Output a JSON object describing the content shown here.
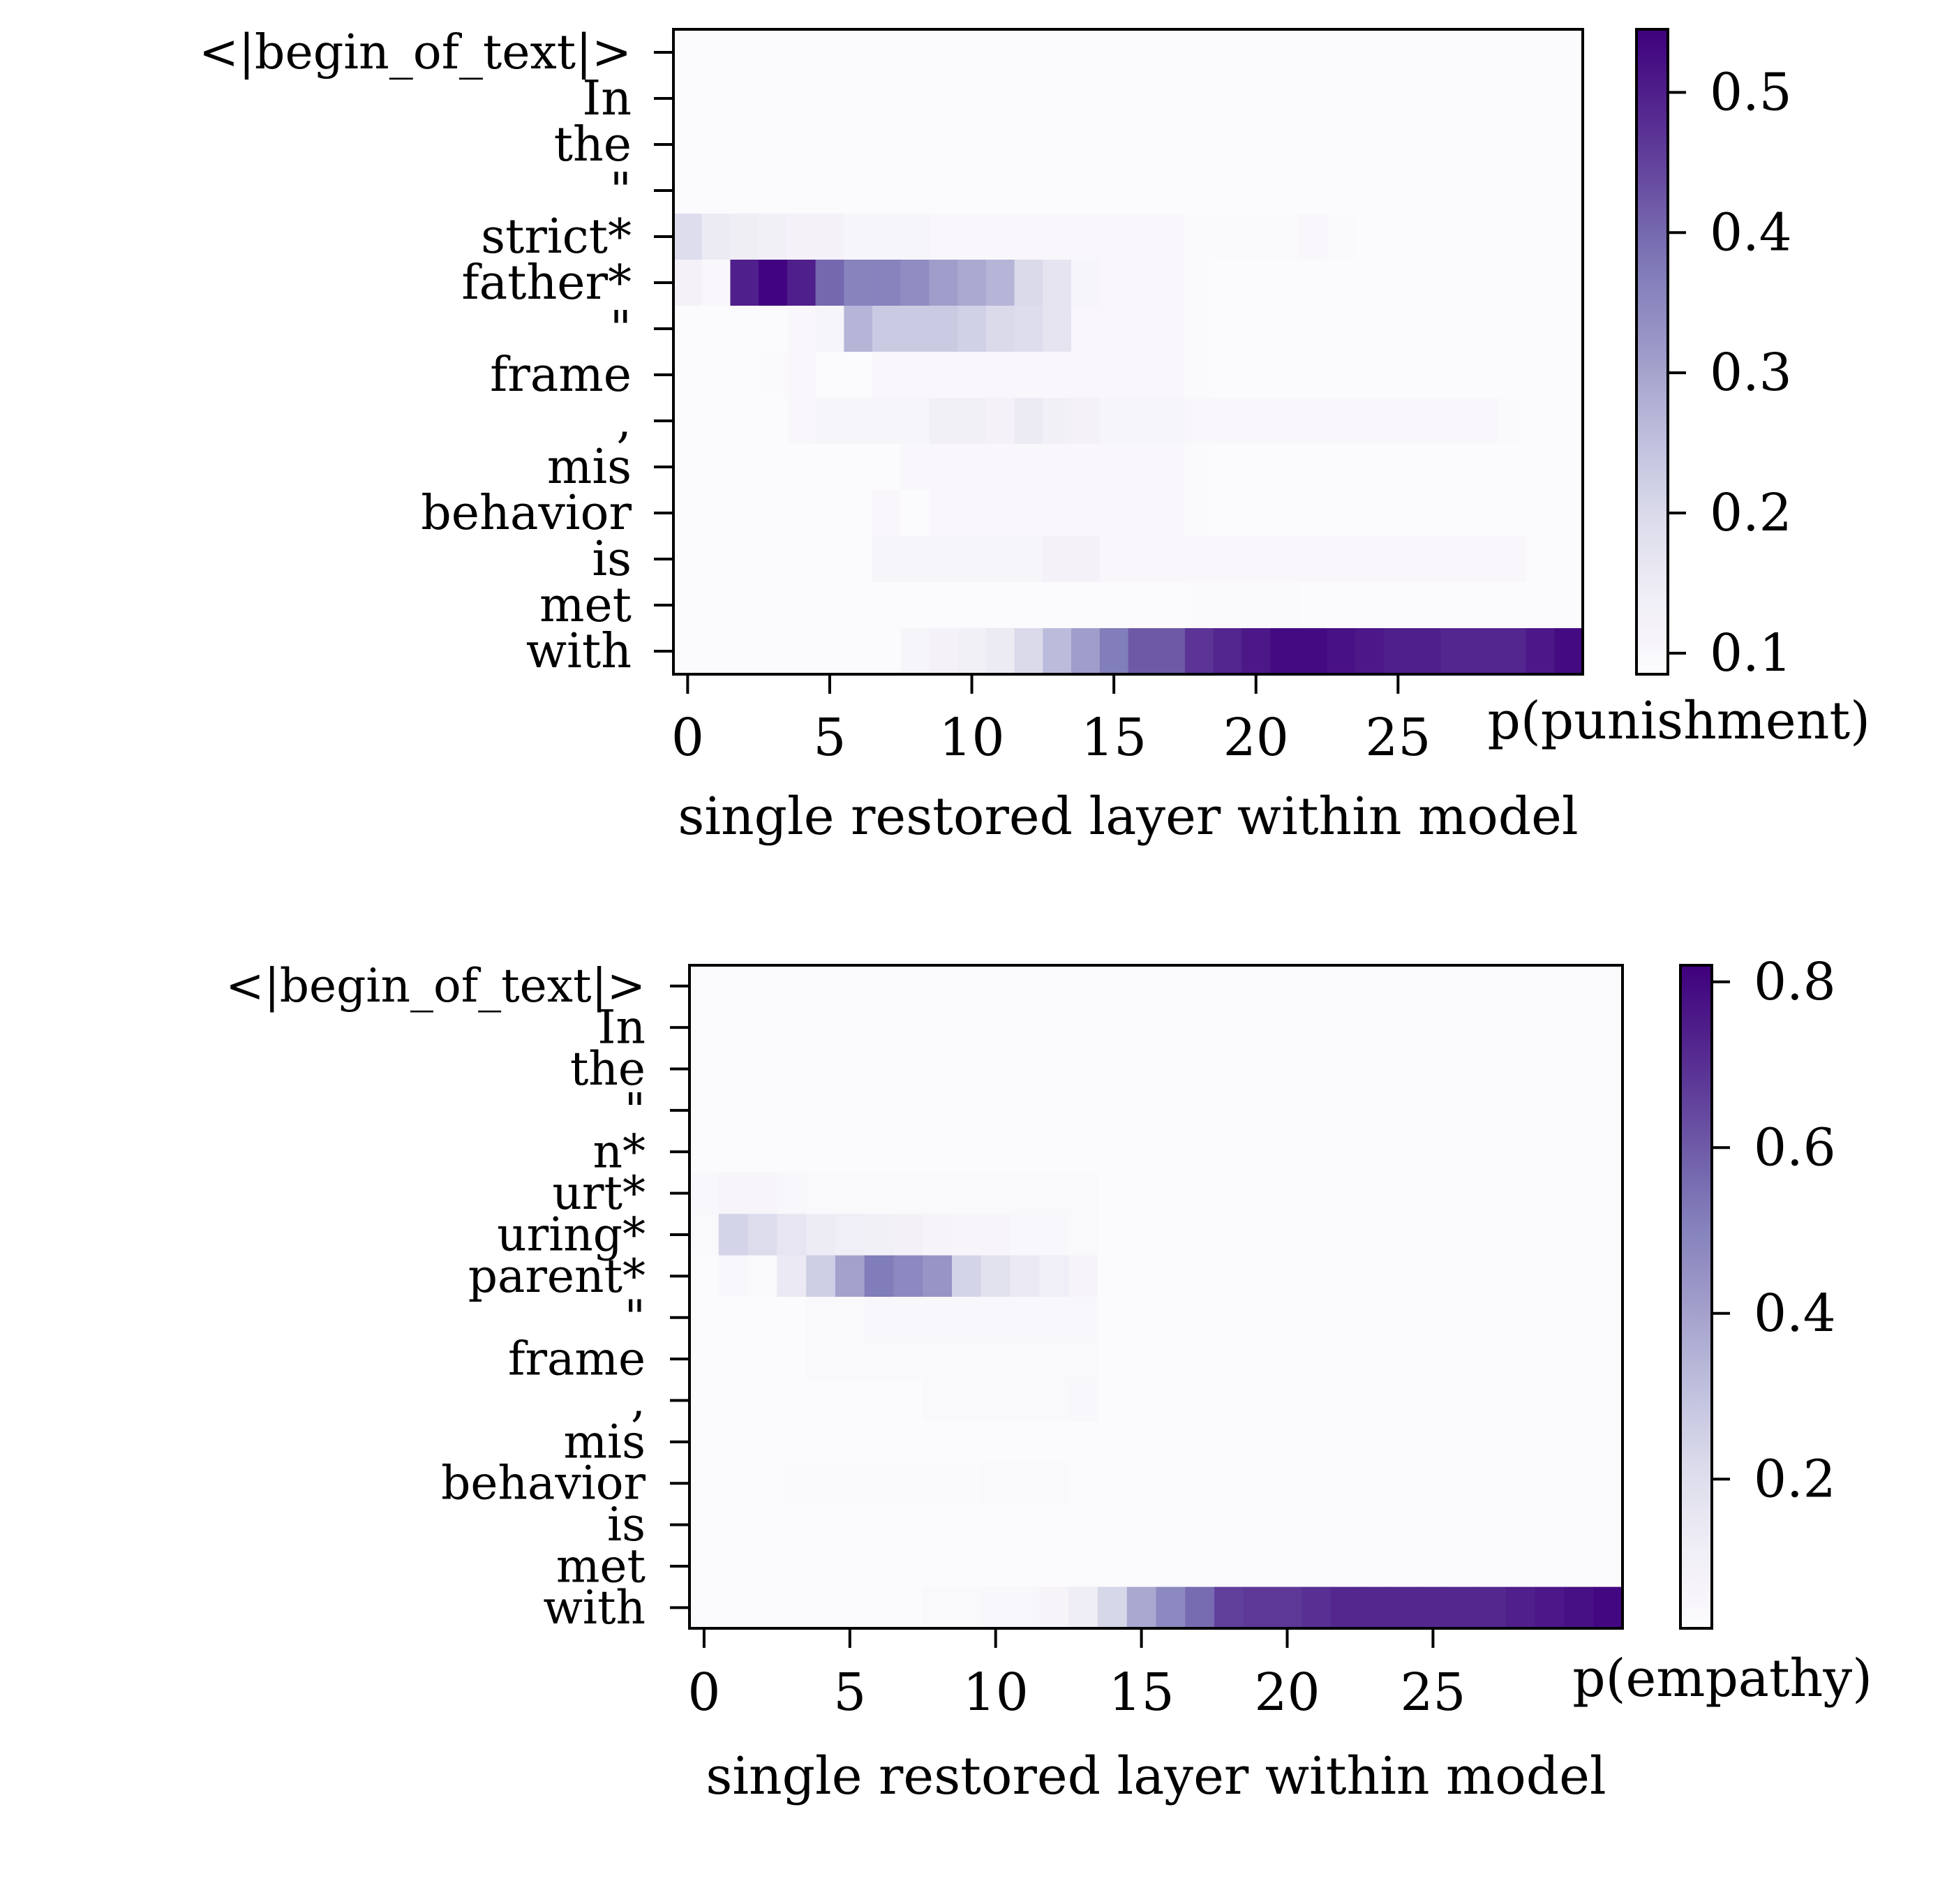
{
  "chart_data": [
    {
      "type": "heatmap",
      "title": "",
      "xlabel": "single restored layer within model",
      "ylabel": "",
      "x_ticks": [
        "0",
        "5",
        "10",
        "15",
        "20",
        "25"
      ],
      "tokens": [
        "<|begin_of_text|>",
        "In",
        "the",
        "\"",
        "strict*",
        "father*",
        "\"",
        "frame",
        ",",
        "mis",
        "behavior",
        "is",
        "met",
        "with"
      ],
      "layers": 32,
      "colorbar": {
        "label": "p(punishment)",
        "min": 0.085,
        "max": 0.545,
        "ticks": [
          "0.1",
          "0.2",
          "0.3",
          "0.4",
          "0.5"
        ],
        "tick_values": [
          0.1,
          0.2,
          0.3,
          0.4,
          0.5
        ]
      },
      "colormap": "Purples",
      "values": [
        [
          0.09,
          0.09,
          0.09,
          0.09,
          0.09,
          0.09,
          0.09,
          0.09,
          0.09,
          0.09,
          0.09,
          0.09,
          0.09,
          0.09,
          0.09,
          0.09,
          0.09,
          0.09,
          0.09,
          0.09,
          0.09,
          0.09,
          0.09,
          0.09,
          0.09,
          0.09,
          0.09,
          0.09,
          0.09,
          0.09,
          0.09,
          0.09
        ],
        [
          0.09,
          0.09,
          0.09,
          0.09,
          0.09,
          0.09,
          0.09,
          0.09,
          0.09,
          0.09,
          0.09,
          0.09,
          0.09,
          0.09,
          0.09,
          0.09,
          0.09,
          0.09,
          0.09,
          0.09,
          0.09,
          0.09,
          0.09,
          0.09,
          0.09,
          0.09,
          0.09,
          0.09,
          0.09,
          0.09,
          0.09,
          0.09
        ],
        [
          0.09,
          0.09,
          0.09,
          0.09,
          0.09,
          0.09,
          0.09,
          0.09,
          0.09,
          0.09,
          0.09,
          0.09,
          0.09,
          0.09,
          0.09,
          0.09,
          0.09,
          0.09,
          0.09,
          0.09,
          0.09,
          0.09,
          0.09,
          0.09,
          0.09,
          0.09,
          0.09,
          0.09,
          0.09,
          0.09,
          0.09,
          0.09
        ],
        [
          0.09,
          0.09,
          0.09,
          0.09,
          0.09,
          0.09,
          0.09,
          0.09,
          0.09,
          0.09,
          0.09,
          0.09,
          0.09,
          0.09,
          0.09,
          0.09,
          0.09,
          0.09,
          0.09,
          0.09,
          0.09,
          0.09,
          0.09,
          0.09,
          0.09,
          0.09,
          0.09,
          0.09,
          0.09,
          0.09,
          0.09,
          0.09
        ],
        [
          0.19,
          0.15,
          0.14,
          0.13,
          0.12,
          0.12,
          0.11,
          0.11,
          0.11,
          0.1,
          0.1,
          0.1,
          0.1,
          0.1,
          0.1,
          0.1,
          0.1,
          0.1,
          0.095,
          0.095,
          0.095,
          0.095,
          0.1,
          0.095,
          0.09,
          0.09,
          0.09,
          0.09,
          0.09,
          0.09,
          0.09,
          0.09
        ],
        [
          0.12,
          0.1,
          0.5,
          0.54,
          0.5,
          0.4,
          0.36,
          0.36,
          0.34,
          0.31,
          0.29,
          0.27,
          0.2,
          0.17,
          0.11,
          0.1,
          0.1,
          0.1,
          0.095,
          0.09,
          0.09,
          0.09,
          0.09,
          0.09,
          0.09,
          0.09,
          0.09,
          0.09,
          0.09,
          0.09,
          0.09,
          0.09
        ],
        [
          0.09,
          0.09,
          0.09,
          0.09,
          0.1,
          0.11,
          0.27,
          0.23,
          0.23,
          0.23,
          0.22,
          0.2,
          0.19,
          0.17,
          0.1,
          0.1,
          0.1,
          0.1,
          0.095,
          0.09,
          0.09,
          0.09,
          0.09,
          0.09,
          0.09,
          0.09,
          0.09,
          0.09,
          0.09,
          0.09,
          0.09,
          0.09
        ],
        [
          0.09,
          0.09,
          0.09,
          0.095,
          0.1,
          0.09,
          0.09,
          0.1,
          0.1,
          0.1,
          0.1,
          0.1,
          0.1,
          0.1,
          0.1,
          0.1,
          0.1,
          0.1,
          0.095,
          0.09,
          0.09,
          0.09,
          0.09,
          0.09,
          0.09,
          0.09,
          0.09,
          0.09,
          0.09,
          0.09,
          0.09,
          0.09
        ],
        [
          0.09,
          0.09,
          0.09,
          0.09,
          0.1,
          0.11,
          0.11,
          0.11,
          0.11,
          0.13,
          0.13,
          0.12,
          0.15,
          0.13,
          0.12,
          0.11,
          0.11,
          0.11,
          0.1,
          0.1,
          0.1,
          0.1,
          0.1,
          0.1,
          0.1,
          0.1,
          0.1,
          0.1,
          0.1,
          0.095,
          0.09,
          0.09
        ],
        [
          0.09,
          0.09,
          0.09,
          0.09,
          0.09,
          0.09,
          0.09,
          0.09,
          0.1,
          0.1,
          0.1,
          0.1,
          0.1,
          0.1,
          0.1,
          0.1,
          0.1,
          0.1,
          0.095,
          0.09,
          0.09,
          0.09,
          0.09,
          0.09,
          0.09,
          0.09,
          0.09,
          0.09,
          0.09,
          0.09,
          0.09,
          0.09
        ],
        [
          0.09,
          0.09,
          0.09,
          0.09,
          0.09,
          0.09,
          0.09,
          0.1,
          0.09,
          0.1,
          0.1,
          0.1,
          0.1,
          0.1,
          0.1,
          0.1,
          0.1,
          0.1,
          0.095,
          0.09,
          0.09,
          0.09,
          0.09,
          0.09,
          0.09,
          0.09,
          0.09,
          0.09,
          0.09,
          0.09,
          0.09,
          0.09
        ],
        [
          0.09,
          0.09,
          0.09,
          0.09,
          0.09,
          0.09,
          0.09,
          0.11,
          0.11,
          0.11,
          0.11,
          0.11,
          0.11,
          0.12,
          0.12,
          0.1,
          0.1,
          0.1,
          0.1,
          0.1,
          0.1,
          0.1,
          0.1,
          0.1,
          0.1,
          0.1,
          0.1,
          0.1,
          0.1,
          0.1,
          0.09,
          0.09
        ],
        [
          0.09,
          0.09,
          0.09,
          0.09,
          0.09,
          0.09,
          0.09,
          0.09,
          0.09,
          0.09,
          0.09,
          0.09,
          0.09,
          0.09,
          0.09,
          0.09,
          0.09,
          0.09,
          0.095,
          0.095,
          0.095,
          0.095,
          0.09,
          0.09,
          0.09,
          0.09,
          0.09,
          0.09,
          0.09,
          0.09,
          0.09,
          0.09
        ],
        [
          0.09,
          0.09,
          0.09,
          0.09,
          0.09,
          0.09,
          0.09,
          0.09,
          0.11,
          0.12,
          0.13,
          0.15,
          0.2,
          0.26,
          0.31,
          0.37,
          0.42,
          0.42,
          0.47,
          0.49,
          0.51,
          0.53,
          0.53,
          0.52,
          0.51,
          0.5,
          0.5,
          0.49,
          0.49,
          0.49,
          0.51,
          0.53
        ]
      ]
    },
    {
      "type": "heatmap",
      "title": "",
      "xlabel": "single restored layer within model",
      "ylabel": "",
      "x_ticks": [
        "0",
        "5",
        "10",
        "15",
        "20",
        "25"
      ],
      "tokens": [
        "<|begin_of_text|>",
        "In",
        "the",
        "\"",
        "n*",
        "urt*",
        "uring*",
        "parent*",
        "\"",
        "frame",
        ",",
        "mis",
        "behavior",
        "is",
        "met",
        "with"
      ],
      "layers": 32,
      "colorbar": {
        "label": "p(empathy)",
        "min": 0.02,
        "max": 0.82,
        "ticks": [
          "0.2",
          "0.4",
          "0.6",
          "0.8"
        ],
        "tick_values": [
          0.2,
          0.4,
          0.6,
          0.8
        ]
      },
      "colormap": "Purples",
      "values": [
        [
          0.03,
          0.03,
          0.03,
          0.03,
          0.03,
          0.03,
          0.03,
          0.03,
          0.03,
          0.03,
          0.03,
          0.03,
          0.03,
          0.03,
          0.03,
          0.03,
          0.03,
          0.03,
          0.03,
          0.03,
          0.03,
          0.03,
          0.03,
          0.03,
          0.03,
          0.03,
          0.03,
          0.03,
          0.03,
          0.03,
          0.03,
          0.03
        ],
        [
          0.03,
          0.03,
          0.03,
          0.03,
          0.03,
          0.03,
          0.03,
          0.03,
          0.03,
          0.03,
          0.03,
          0.03,
          0.03,
          0.03,
          0.03,
          0.03,
          0.03,
          0.03,
          0.03,
          0.03,
          0.03,
          0.03,
          0.03,
          0.03,
          0.03,
          0.03,
          0.03,
          0.03,
          0.03,
          0.03,
          0.03,
          0.03
        ],
        [
          0.03,
          0.03,
          0.03,
          0.03,
          0.03,
          0.03,
          0.03,
          0.03,
          0.03,
          0.03,
          0.03,
          0.03,
          0.03,
          0.03,
          0.03,
          0.03,
          0.03,
          0.03,
          0.03,
          0.03,
          0.03,
          0.03,
          0.03,
          0.03,
          0.03,
          0.03,
          0.03,
          0.03,
          0.03,
          0.03,
          0.03,
          0.03
        ],
        [
          0.03,
          0.03,
          0.03,
          0.03,
          0.03,
          0.03,
          0.03,
          0.03,
          0.03,
          0.03,
          0.03,
          0.03,
          0.03,
          0.03,
          0.03,
          0.03,
          0.03,
          0.03,
          0.03,
          0.03,
          0.03,
          0.03,
          0.03,
          0.03,
          0.03,
          0.03,
          0.03,
          0.03,
          0.03,
          0.03,
          0.03,
          0.03
        ],
        [
          0.03,
          0.03,
          0.03,
          0.03,
          0.03,
          0.03,
          0.03,
          0.03,
          0.03,
          0.03,
          0.03,
          0.03,
          0.03,
          0.03,
          0.03,
          0.03,
          0.03,
          0.03,
          0.03,
          0.03,
          0.03,
          0.03,
          0.03,
          0.03,
          0.03,
          0.03,
          0.03,
          0.03,
          0.03,
          0.03,
          0.03,
          0.03
        ],
        [
          0.05,
          0.06,
          0.06,
          0.05,
          0.04,
          0.04,
          0.04,
          0.04,
          0.04,
          0.04,
          0.04,
          0.04,
          0.04,
          0.04,
          0.03,
          0.03,
          0.03,
          0.03,
          0.03,
          0.03,
          0.03,
          0.03,
          0.03,
          0.03,
          0.03,
          0.03,
          0.03,
          0.03,
          0.03,
          0.03,
          0.03,
          0.03
        ],
        [
          0.04,
          0.24,
          0.21,
          0.16,
          0.13,
          0.11,
          0.1,
          0.09,
          0.07,
          0.06,
          0.06,
          0.05,
          0.05,
          0.04,
          0.03,
          0.03,
          0.03,
          0.03,
          0.03,
          0.03,
          0.03,
          0.03,
          0.03,
          0.03,
          0.03,
          0.03,
          0.03,
          0.03,
          0.03,
          0.03,
          0.03,
          0.03
        ],
        [
          0.03,
          0.05,
          0.04,
          0.14,
          0.26,
          0.4,
          0.52,
          0.48,
          0.44,
          0.24,
          0.18,
          0.14,
          0.11,
          0.07,
          0.03,
          0.03,
          0.03,
          0.03,
          0.03,
          0.03,
          0.03,
          0.03,
          0.03,
          0.03,
          0.03,
          0.03,
          0.03,
          0.03,
          0.03,
          0.03,
          0.03,
          0.03
        ],
        [
          0.03,
          0.03,
          0.03,
          0.03,
          0.04,
          0.04,
          0.05,
          0.05,
          0.05,
          0.05,
          0.05,
          0.05,
          0.05,
          0.05,
          0.03,
          0.03,
          0.03,
          0.03,
          0.03,
          0.03,
          0.03,
          0.03,
          0.03,
          0.03,
          0.03,
          0.03,
          0.03,
          0.03,
          0.03,
          0.03,
          0.03,
          0.03
        ],
        [
          0.03,
          0.03,
          0.03,
          0.03,
          0.04,
          0.04,
          0.04,
          0.04,
          0.04,
          0.04,
          0.04,
          0.04,
          0.04,
          0.04,
          0.03,
          0.03,
          0.03,
          0.03,
          0.03,
          0.03,
          0.03,
          0.03,
          0.03,
          0.03,
          0.03,
          0.03,
          0.03,
          0.03,
          0.03,
          0.03,
          0.03,
          0.03
        ],
        [
          0.03,
          0.03,
          0.03,
          0.03,
          0.03,
          0.03,
          0.03,
          0.03,
          0.04,
          0.04,
          0.04,
          0.04,
          0.04,
          0.05,
          0.03,
          0.03,
          0.03,
          0.03,
          0.03,
          0.03,
          0.03,
          0.03,
          0.03,
          0.03,
          0.03,
          0.03,
          0.03,
          0.03,
          0.03,
          0.03,
          0.03,
          0.03
        ],
        [
          0.03,
          0.03,
          0.03,
          0.03,
          0.03,
          0.03,
          0.03,
          0.03,
          0.03,
          0.03,
          0.03,
          0.03,
          0.03,
          0.03,
          0.03,
          0.03,
          0.03,
          0.03,
          0.03,
          0.03,
          0.03,
          0.03,
          0.03,
          0.03,
          0.03,
          0.03,
          0.03,
          0.03,
          0.03,
          0.03,
          0.03,
          0.03
        ],
        [
          0.03,
          0.03,
          0.03,
          0.035,
          0.035,
          0.035,
          0.035,
          0.035,
          0.035,
          0.035,
          0.04,
          0.04,
          0.04,
          0.03,
          0.03,
          0.03,
          0.03,
          0.03,
          0.03,
          0.03,
          0.03,
          0.03,
          0.03,
          0.03,
          0.03,
          0.03,
          0.03,
          0.03,
          0.03,
          0.03,
          0.03,
          0.03
        ],
        [
          0.03,
          0.03,
          0.03,
          0.03,
          0.03,
          0.03,
          0.03,
          0.03,
          0.03,
          0.03,
          0.03,
          0.03,
          0.03,
          0.03,
          0.03,
          0.03,
          0.03,
          0.03,
          0.03,
          0.03,
          0.03,
          0.03,
          0.03,
          0.03,
          0.03,
          0.03,
          0.03,
          0.03,
          0.03,
          0.03,
          0.03,
          0.03
        ],
        [
          0.03,
          0.03,
          0.03,
          0.03,
          0.03,
          0.03,
          0.03,
          0.03,
          0.03,
          0.03,
          0.03,
          0.03,
          0.03,
          0.03,
          0.03,
          0.03,
          0.03,
          0.03,
          0.03,
          0.03,
          0.03,
          0.03,
          0.03,
          0.03,
          0.03,
          0.03,
          0.03,
          0.03,
          0.03,
          0.03,
          0.03,
          0.03
        ],
        [
          0.03,
          0.03,
          0.03,
          0.03,
          0.03,
          0.03,
          0.03,
          0.03,
          0.04,
          0.04,
          0.05,
          0.05,
          0.07,
          0.12,
          0.23,
          0.38,
          0.48,
          0.56,
          0.66,
          0.68,
          0.68,
          0.7,
          0.72,
          0.72,
          0.72,
          0.72,
          0.72,
          0.72,
          0.74,
          0.76,
          0.78,
          0.8
        ]
      ]
    }
  ]
}
